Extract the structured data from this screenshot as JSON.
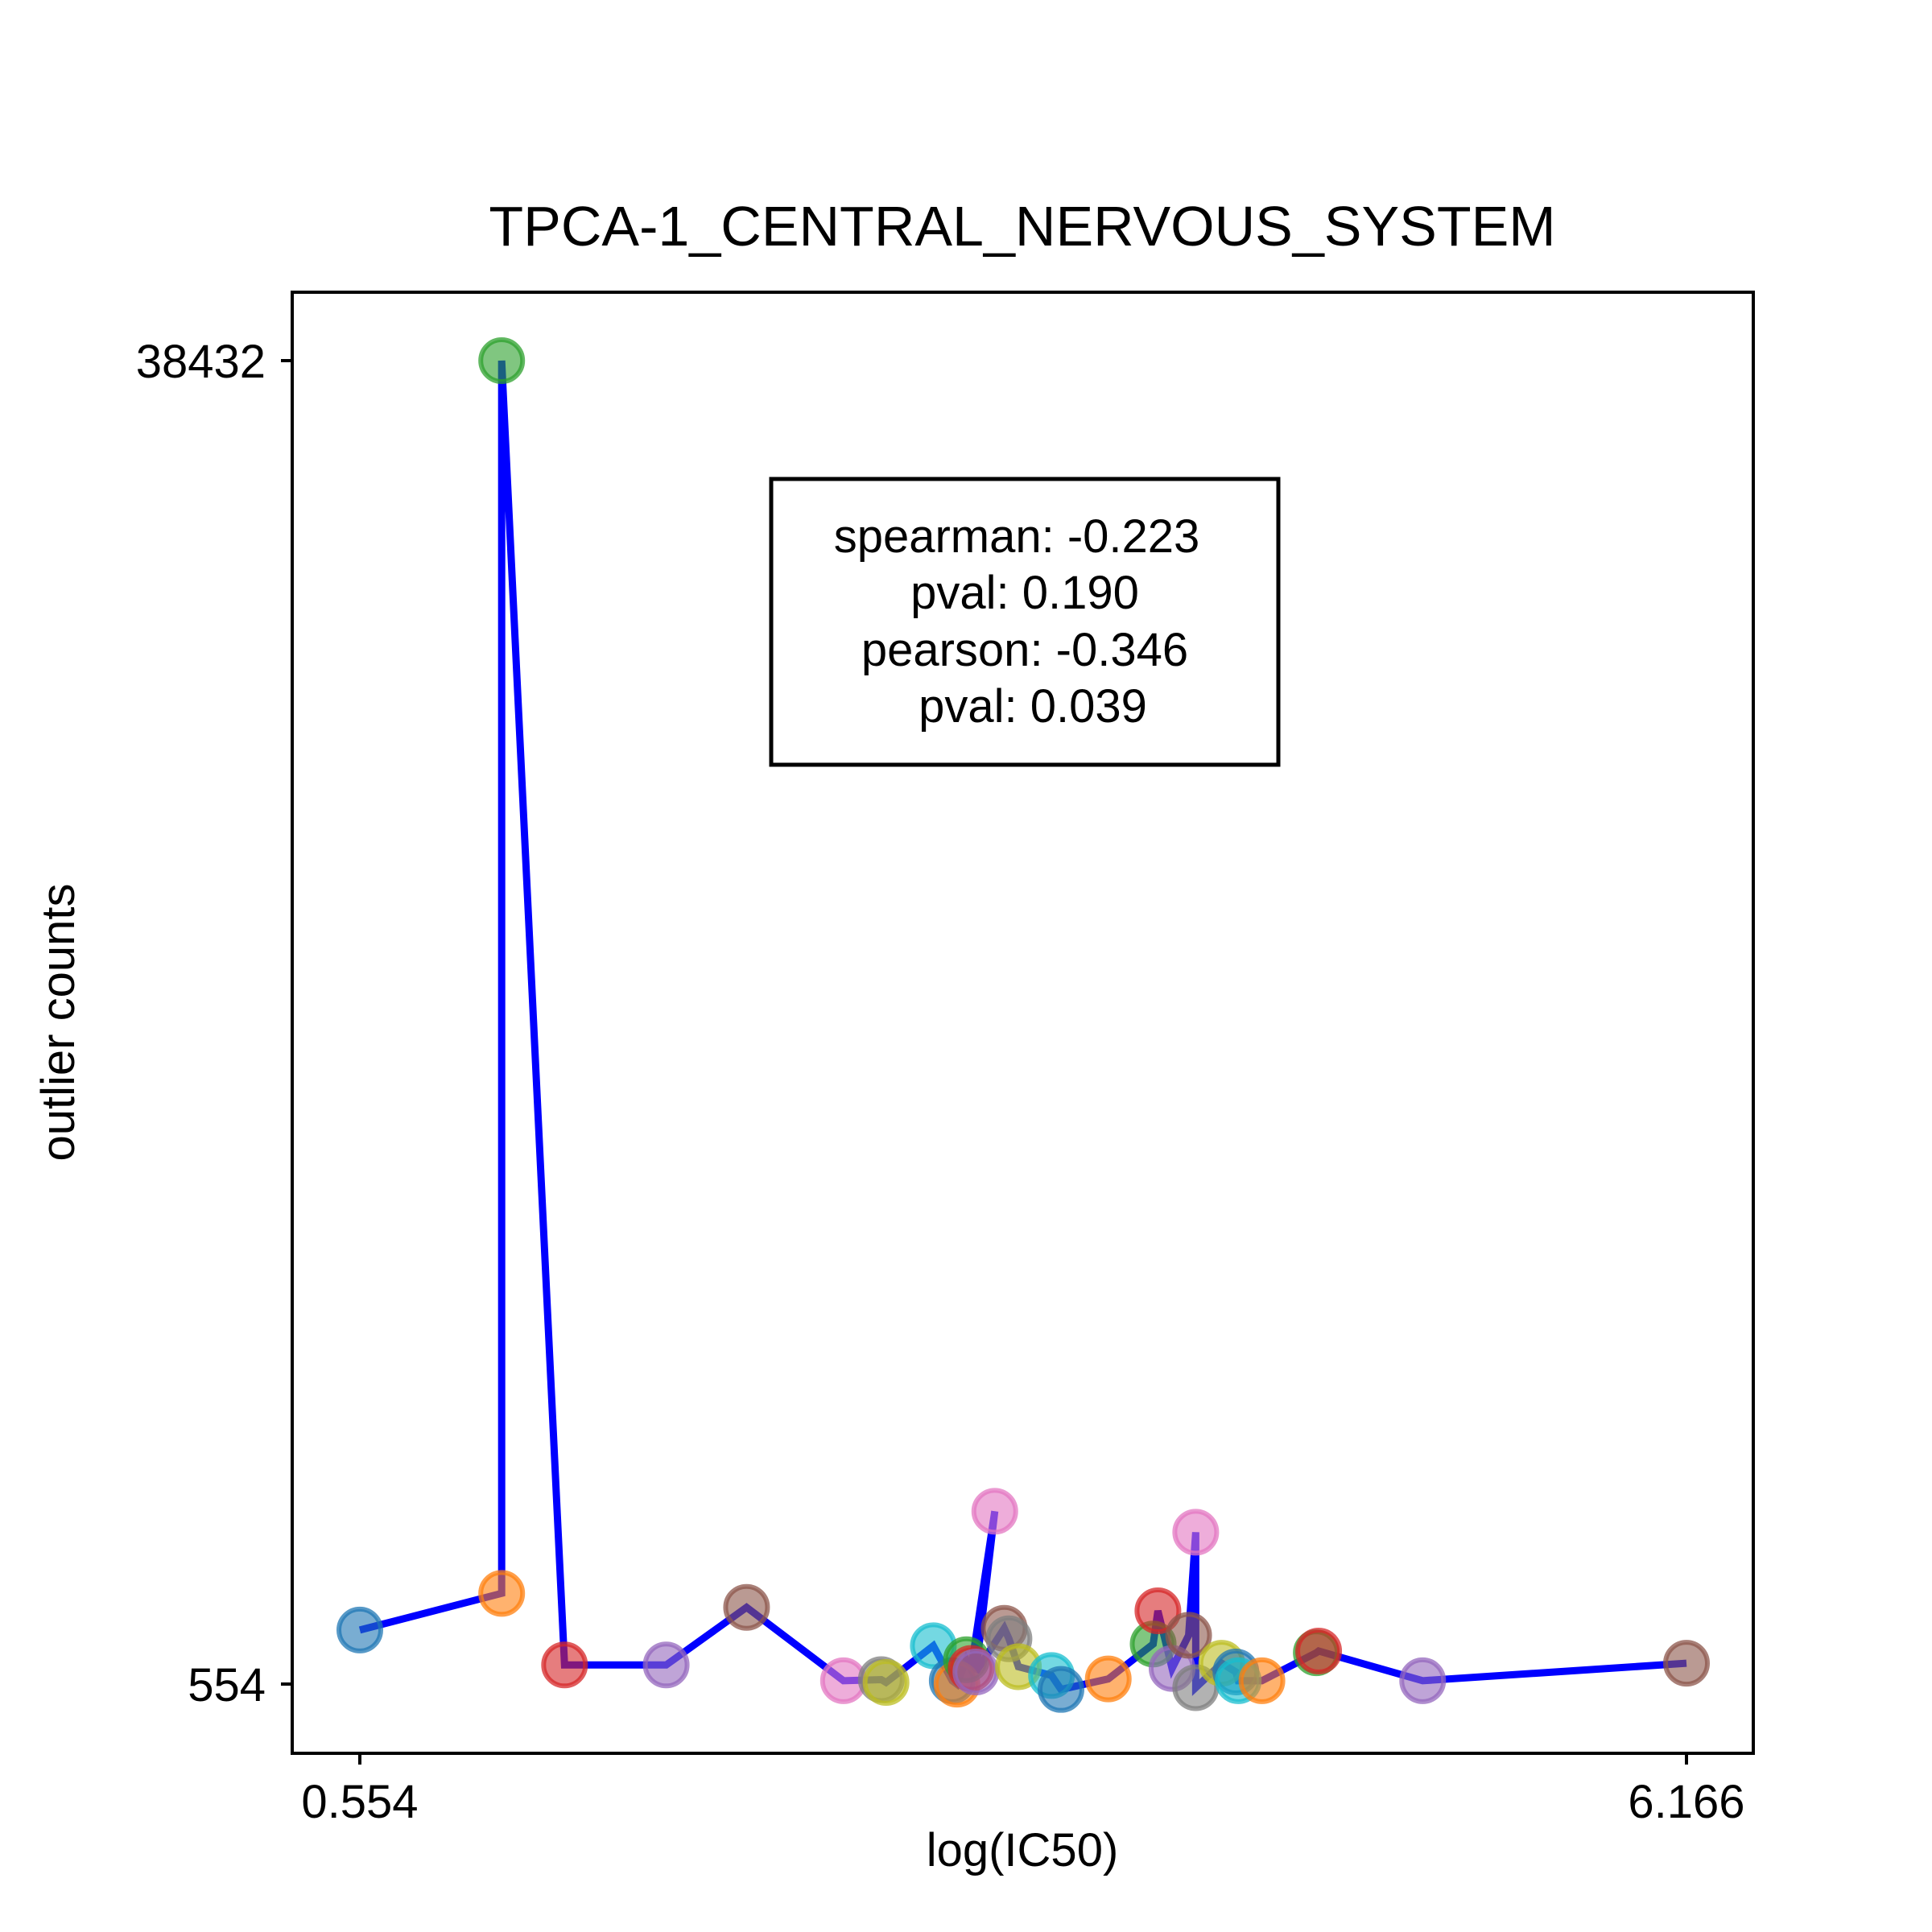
{
  "chart_data": {
    "type": "scatter",
    "title": "TPCA-1_CENTRAL_NERVOUS_SYSTEM",
    "xlabel": "log(IC50)",
    "ylabel": "outlier counts",
    "xlim": [
      0.554,
      6.166
    ],
    "ylim": [
      554,
      38432
    ],
    "xticks": [
      {
        "value": 0.554,
        "label": "0.554"
      },
      {
        "value": 6.166,
        "label": "6.166"
      }
    ],
    "yticks": [
      {
        "value": 554,
        "label": "554"
      },
      {
        "value": 38432,
        "label": "38432"
      }
    ],
    "grid": false,
    "legend": "none",
    "annotation": [
      "spearman: -0.223",
      "pval: 0.190",
      "pearson: -0.346",
      "pval: 0.039"
    ],
    "line_color": "#0000ff",
    "points": [
      {
        "x": 0.554,
        "y": 2100,
        "color": "#1f77b4"
      },
      {
        "x": 1.154,
        "y": 3150,
        "color": "#ff7f0e"
      },
      {
        "x": 1.154,
        "y": 38432,
        "color": "#2ca02c"
      },
      {
        "x": 1.42,
        "y": 1100,
        "color": "#d62728"
      },
      {
        "x": 1.85,
        "y": 1100,
        "color": "#9467bd"
      },
      {
        "x": 2.19,
        "y": 2750,
        "color": "#8c564b"
      },
      {
        "x": 2.6,
        "y": 650,
        "color": "#e377c2"
      },
      {
        "x": 2.76,
        "y": 680,
        "color": "#7f7f7f"
      },
      {
        "x": 2.78,
        "y": 600,
        "color": "#bcbd22"
      },
      {
        "x": 2.98,
        "y": 1650,
        "color": "#17becf"
      },
      {
        "x": 3.06,
        "y": 650,
        "color": "#1f77b4"
      },
      {
        "x": 3.08,
        "y": 550,
        "color": "#ff7f0e"
      },
      {
        "x": 3.12,
        "y": 1250,
        "color": "#2ca02c"
      },
      {
        "x": 3.14,
        "y": 1000,
        "color": "#d62728"
      },
      {
        "x": 3.24,
        "y": 5500,
        "color": "#e377c2"
      },
      {
        "x": 3.16,
        "y": 900,
        "color": "#9467bd"
      },
      {
        "x": 3.28,
        "y": 2150,
        "color": "#8c564b"
      },
      {
        "x": 3.3,
        "y": 1850,
        "color": "#7f7f7f"
      },
      {
        "x": 3.34,
        "y": 1050,
        "color": "#bcbd22"
      },
      {
        "x": 3.48,
        "y": 800,
        "color": "#17becf"
      },
      {
        "x": 3.52,
        "y": 400,
        "color": "#1f77b4"
      },
      {
        "x": 3.72,
        "y": 700,
        "color": "#ff7f0e"
      },
      {
        "x": 3.91,
        "y": 1700,
        "color": "#2ca02c"
      },
      {
        "x": 3.93,
        "y": 2650,
        "color": "#d62728"
      },
      {
        "x": 3.99,
        "y": 1000,
        "color": "#9467bd"
      },
      {
        "x": 4.06,
        "y": 1950,
        "color": "#8c564b"
      },
      {
        "x": 4.09,
        "y": 4900,
        "color": "#e377c2"
      },
      {
        "x": 4.09,
        "y": 450,
        "color": "#7f7f7f"
      },
      {
        "x": 4.2,
        "y": 1150,
        "color": "#bcbd22"
      },
      {
        "x": 4.26,
        "y": 900,
        "color": "#1f77b4"
      },
      {
        "x": 4.27,
        "y": 650,
        "color": "#17becf"
      },
      {
        "x": 4.37,
        "y": 650,
        "color": "#ff7f0e"
      },
      {
        "x": 4.6,
        "y": 1450,
        "color": "#2ca02c"
      },
      {
        "x": 4.61,
        "y": 1500,
        "color": "#d62728"
      },
      {
        "x": 5.05,
        "y": 650,
        "color": "#9467bd"
      },
      {
        "x": 6.166,
        "y": 1150,
        "color": "#8c564b"
      }
    ]
  }
}
